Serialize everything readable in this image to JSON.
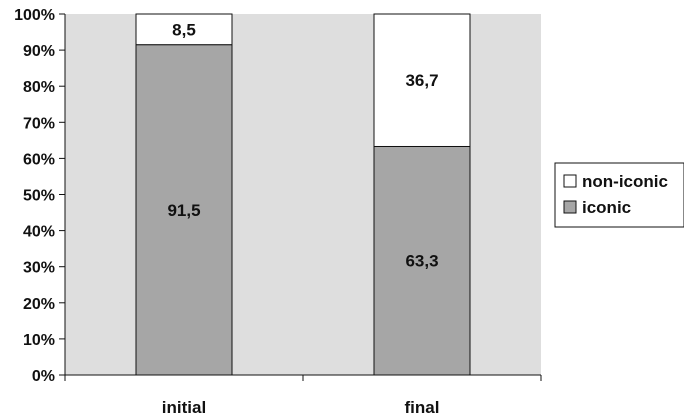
{
  "chart_data": {
    "type": "bar",
    "stacked": true,
    "percent_axis": true,
    "categories": [
      "initial",
      "final"
    ],
    "series": [
      {
        "name": "iconic",
        "values": [
          91.5,
          63.3
        ],
        "labels": [
          "91,5",
          "63,3"
        ],
        "color": "#a6a6a6"
      },
      {
        "name": "non-iconic",
        "values": [
          8.5,
          36.7
        ],
        "labels": [
          "8,5",
          "36,7"
        ],
        "color": "#ffffff"
      }
    ],
    "ylim": [
      0,
      100
    ],
    "yticks": [
      "0%",
      "10%",
      "20%",
      "30%",
      "40%",
      "50%",
      "60%",
      "70%",
      "80%",
      "90%",
      "100%"
    ],
    "plot_background": "#dedede",
    "legend_position": "right",
    "grid": false
  }
}
